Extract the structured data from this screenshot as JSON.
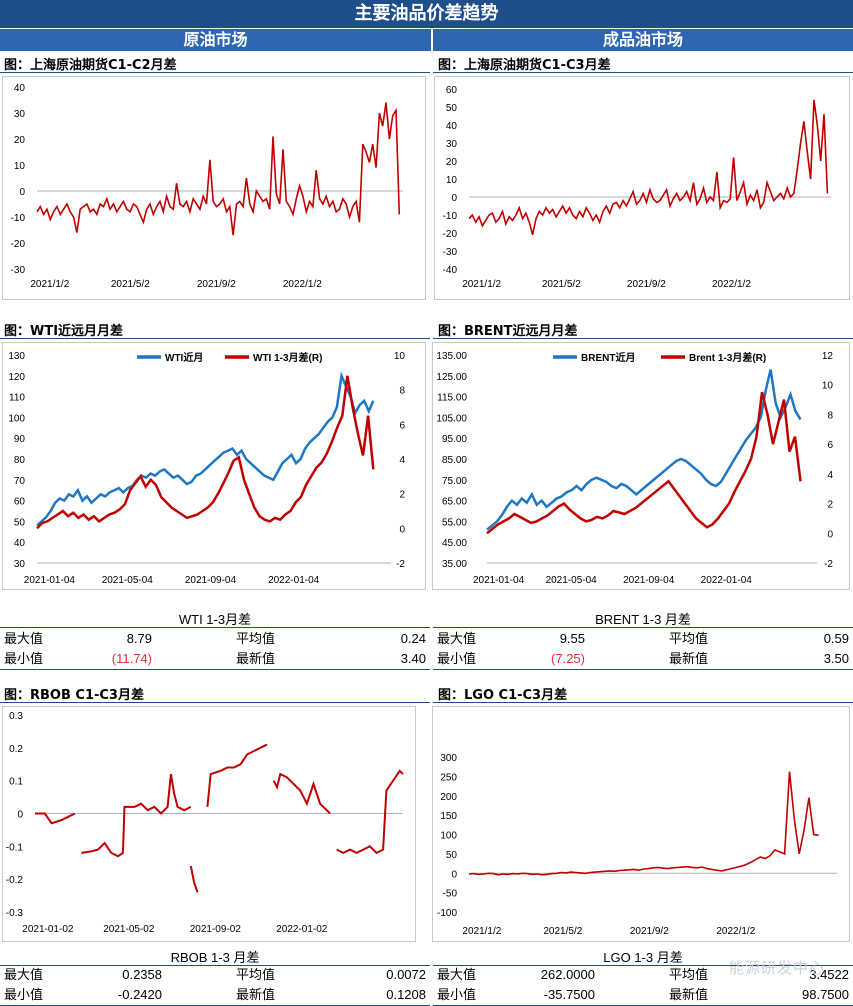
{
  "header": {
    "title": "主要油品价差趋势",
    "left_section": "原油市场",
    "right_section": "成品油市场"
  },
  "colors": {
    "header_bg": "#1f4e8c",
    "section_bg": "#2e67b1",
    "red_series": "#c00000",
    "blue_series": "#1f77c4",
    "negative_text": "#e03030"
  },
  "chart_data": [
    {
      "id": "sh_c1c2",
      "type": "line",
      "title": "图：上海原油期货C1-C2月差",
      "yticks": [
        -30,
        -20,
        -10,
        0,
        10,
        20,
        30,
        40
      ],
      "ylim": [
        -30,
        40
      ],
      "xticks": [
        "2021/1/2",
        "2021/5/2",
        "2021/9/2",
        "2022/1/2"
      ],
      "x_range": [
        "2021-01-02",
        "2022-05-15"
      ],
      "series": [
        {
          "color": "#c00000",
          "values": [
            -8,
            -6,
            -9,
            -7,
            -11,
            -8,
            -6,
            -9,
            -7,
            -5,
            -8,
            -10,
            -16,
            -7,
            -6,
            -5,
            -8,
            -7,
            -9,
            -5,
            -6,
            -3,
            -7,
            -5,
            -8,
            -6,
            -4,
            -7,
            -8,
            -5,
            -6,
            -9,
            -12,
            -7,
            -5,
            -9,
            -6,
            -4,
            -8,
            -2,
            -6,
            -7,
            3,
            -5,
            -6,
            -4,
            -8,
            -3,
            -5,
            -7,
            -2,
            -5,
            12,
            -4,
            -6,
            -5,
            -3,
            -8,
            -6,
            -17,
            -5,
            -4,
            -6,
            5,
            -5,
            -8,
            0,
            -2,
            -4,
            -3,
            -7,
            21,
            -1,
            -5,
            16,
            -4,
            -6,
            -9,
            -3,
            2,
            -2,
            -8,
            -4,
            -6,
            8,
            -3,
            -5,
            -2,
            -6,
            -4,
            -8,
            -7,
            -3,
            -5,
            -10,
            -6,
            -4,
            -12,
            18,
            15,
            11,
            18,
            9,
            30,
            25,
            34,
            20,
            29,
            31,
            -9
          ]
        }
      ]
    },
    {
      "id": "sh_c1c3",
      "type": "line",
      "title": "图：上海原油期货C1-C3月差",
      "yticks": [
        -40,
        -30,
        -20,
        -10,
        0,
        10,
        20,
        30,
        40,
        50,
        60
      ],
      "ylim": [
        -40,
        60
      ],
      "xticks": [
        "2021/1/2",
        "2021/5/2",
        "2021/9/2",
        "2022/1/2"
      ],
      "x_range": [
        "2021-01-02",
        "2022-05-15"
      ],
      "series": [
        {
          "color": "#c00000",
          "values": [
            -12,
            -10,
            -14,
            -11,
            -16,
            -13,
            -10,
            -9,
            -14,
            -12,
            -8,
            -15,
            -11,
            -13,
            -10,
            -6,
            -12,
            -9,
            -14,
            -21,
            -12,
            -8,
            -10,
            -6,
            -9,
            -7,
            -11,
            -8,
            -5,
            -9,
            -6,
            -10,
            -12,
            -8,
            -11,
            -6,
            -9,
            -13,
            -10,
            -14,
            -8,
            -5,
            -9,
            -4,
            -3,
            -6,
            -2,
            -5,
            -1,
            3,
            -4,
            -2,
            2,
            -3,
            4,
            -1,
            -3,
            -2,
            1,
            4,
            -5,
            -1,
            2,
            -2,
            0,
            3,
            -2,
            8,
            -4,
            -1,
            5,
            -3,
            0,
            -2,
            14,
            -6,
            -2,
            -3,
            -1,
            22,
            -2,
            3,
            8,
            -4,
            1,
            -2,
            4,
            -6,
            -3,
            8,
            3,
            -2,
            0,
            2,
            -1,
            5,
            0,
            2,
            15,
            30,
            42,
            25,
            10,
            54,
            40,
            20,
            46,
            2
          ]
        }
      ]
    },
    {
      "id": "wti",
      "type": "line",
      "title": "图：WTI近远月月差",
      "yticks": [
        30,
        40,
        50,
        60,
        70,
        80,
        90,
        100,
        110,
        120,
        130
      ],
      "ylim": [
        30,
        130
      ],
      "y2ticks": [
        -2,
        0,
        2,
        4,
        6,
        8,
        10
      ],
      "y2lim": [
        -2,
        10
      ],
      "xticks": [
        "2021-01-04",
        "2021-05-04",
        "2021-09-04",
        "2022-01-04"
      ],
      "x_range": [
        "2021-01-04",
        "2022-05-15"
      ],
      "legend": [
        "WTI近月",
        "WTI 1-3月差(R)"
      ],
      "series": [
        {
          "name": "WTI近月",
          "axis": "left",
          "color": "#1f77c4",
          "values": [
            48,
            50,
            52,
            55,
            59,
            61,
            60,
            63,
            62,
            65,
            60,
            62,
            59,
            61,
            63,
            62,
            64,
            65,
            66,
            64,
            66,
            67,
            70,
            72,
            71,
            73,
            72,
            74,
            75,
            73,
            71,
            72,
            70,
            68,
            69,
            72,
            73,
            75,
            77,
            79,
            81,
            83,
            84,
            85,
            82,
            84,
            80,
            78,
            76,
            74,
            72,
            71,
            70,
            74,
            78,
            80,
            82,
            78,
            80,
            85,
            88,
            90,
            92,
            95,
            98,
            100,
            105,
            120,
            115,
            110,
            102,
            106,
            108,
            103,
            108
          ]
        },
        {
          "name": "WTI 1-3月差(R)",
          "axis": "right",
          "color": "#c00000",
          "values": [
            0,
            0.3,
            0.4,
            0.6,
            0.8,
            1,
            0.7,
            0.9,
            0.6,
            0.8,
            0.5,
            0.7,
            0.4,
            0.6,
            0.8,
            0.9,
            1.1,
            1.4,
            2.2,
            2.6,
            3,
            2.4,
            2.8,
            2.5,
            1.8,
            1.5,
            1.2,
            1.0,
            0.8,
            0.6,
            0.7,
            0.8,
            1.0,
            1.2,
            1.5,
            2.0,
            2.6,
            3.2,
            3.9,
            4.1,
            2.8,
            2.0,
            1.2,
            0.7,
            0.5,
            0.4,
            0.6,
            0.5,
            0.8,
            1.0,
            1.5,
            1.8,
            2.5,
            3.0,
            3.5,
            3.8,
            4.3,
            5.0,
            5.8,
            6.5,
            8.8,
            7.0,
            5.5,
            4.2,
            6.5,
            3.4
          ]
        }
      ]
    },
    {
      "id": "brent",
      "type": "line",
      "title": "图：BRENT近远月月差",
      "yticks": [
        35,
        45,
        55,
        65,
        75,
        85,
        95,
        105,
        115,
        125,
        135
      ],
      "ylim": [
        35,
        135
      ],
      "ytick_labels": [
        "35.00",
        "45.00",
        "55.00",
        "65.00",
        "75.00",
        "85.00",
        "95.00",
        "105.00",
        "115.00",
        "125.00",
        "135.00"
      ],
      "y2ticks": [
        -2,
        0,
        2,
        4,
        6,
        8,
        10,
        12
      ],
      "y2lim": [
        -2,
        12
      ],
      "xticks": [
        "2021-01-04",
        "2021-05-04",
        "2021-09-04",
        "2022-01-04"
      ],
      "x_range": [
        "2021-01-04",
        "2022-05-15"
      ],
      "legend": [
        "BRENT近月",
        "Brent 1-3月差(R)"
      ],
      "series": [
        {
          "name": "BRENT近月",
          "axis": "left",
          "color": "#1f77c4",
          "values": [
            51,
            53,
            55,
            58,
            62,
            65,
            63,
            66,
            64,
            68,
            63,
            65,
            62,
            64,
            66,
            67,
            69,
            70,
            72,
            70,
            73,
            75,
            76,
            75,
            74,
            72,
            71,
            73,
            72,
            70,
            68,
            70,
            72,
            74,
            76,
            78,
            80,
            82,
            84,
            85,
            84,
            82,
            80,
            78,
            75,
            73,
            72,
            74,
            78,
            82,
            86,
            90,
            94,
            97,
            100,
            105,
            118,
            128,
            112,
            105,
            110,
            116,
            108,
            104
          ]
        },
        {
          "name": "Brent 1-3月差(R)",
          "axis": "right",
          "color": "#c00000",
          "values": [
            0,
            0.3,
            0.6,
            0.8,
            1.0,
            1.3,
            1.1,
            0.9,
            0.7,
            0.8,
            1.0,
            1.2,
            1.5,
            1.8,
            2.0,
            1.6,
            1.3,
            1.0,
            0.8,
            0.9,
            1.1,
            1.0,
            1.2,
            1.5,
            1.4,
            1.3,
            1.5,
            1.7,
            2.0,
            2.3,
            2.6,
            2.9,
            3.2,
            3.5,
            3.0,
            2.5,
            2.0,
            1.5,
            1.0,
            0.7,
            0.4,
            0.6,
            1.0,
            1.5,
            2.0,
            2.8,
            3.5,
            4.2,
            5.0,
            6.5,
            9.5,
            8.0,
            6.0,
            7.5,
            9.0,
            5.5,
            6.5,
            3.5
          ]
        }
      ]
    },
    {
      "id": "rbob",
      "type": "line",
      "title": "图：RBOB C1-C3月差",
      "yticks": [
        -0.3,
        -0.2,
        -0.1,
        0,
        0.1,
        0.2,
        0.3
      ],
      "ylim": [
        -0.3,
        0.3
      ],
      "xticks": [
        "2021-01-02",
        "2021-05-02",
        "2021-09-02",
        "2022-01-02"
      ],
      "x_range": [
        "2021-01-02",
        "2022-05-15"
      ],
      "series": [
        {
          "color": "#c00000",
          "segments": [
            [
              [
                0.0,
                0.0
              ],
              [
                0.03,
                0.0
              ],
              [
                0.05,
                -0.03
              ],
              [
                0.08,
                -0.02
              ],
              [
                0.1,
                -0.01
              ],
              [
                0.12,
                0.0
              ]
            ],
            [
              [
                0.14,
                -0.12
              ],
              [
                0.17,
                -0.115
              ],
              [
                0.19,
                -0.11
              ],
              [
                0.21,
                -0.09
              ],
              [
                0.23,
                -0.12
              ],
              [
                0.25,
                -0.13
              ],
              [
                0.265,
                -0.12
              ],
              [
                0.27,
                0.02
              ],
              [
                0.3,
                0.02
              ],
              [
                0.32,
                0.03
              ],
              [
                0.34,
                0.01
              ],
              [
                0.36,
                0.02
              ],
              [
                0.38,
                0.0
              ],
              [
                0.4,
                0.02
              ],
              [
                0.41,
                0.12
              ],
              [
                0.42,
                0.06
              ],
              [
                0.43,
                0.02
              ],
              [
                0.45,
                0.01
              ],
              [
                0.47,
                0.02
              ]
            ],
            [
              [
                0.47,
                -0.16
              ],
              [
                0.48,
                -0.21
              ],
              [
                0.49,
                -0.24
              ]
            ],
            [
              [
                0.52,
                0.02
              ],
              [
                0.53,
                0.12
              ],
              [
                0.56,
                0.13
              ],
              [
                0.58,
                0.14
              ],
              [
                0.6,
                0.14
              ],
              [
                0.62,
                0.15
              ],
              [
                0.64,
                0.18
              ],
              [
                0.66,
                0.19
              ],
              [
                0.68,
                0.2
              ],
              [
                0.7,
                0.21
              ]
            ],
            [
              [
                0.72,
                0.1
              ],
              [
                0.73,
                0.08
              ],
              [
                0.74,
                0.12
              ],
              [
                0.76,
                0.11
              ],
              [
                0.78,
                0.09
              ],
              [
                0.8,
                0.07
              ],
              [
                0.82,
                0.03
              ],
              [
                0.84,
                0.09
              ],
              [
                0.86,
                0.03
              ],
              [
                0.88,
                0.01
              ],
              [
                0.89,
                0.0
              ]
            ],
            [
              [
                0.91,
                -0.11
              ],
              [
                0.93,
                -0.12
              ],
              [
                0.95,
                -0.11
              ],
              [
                0.97,
                -0.12
              ],
              [
                0.99,
                -0.11
              ],
              [
                1.01,
                -0.1
              ],
              [
                1.03,
                -0.12
              ],
              [
                1.05,
                -0.11
              ],
              [
                1.06,
                0.07
              ],
              [
                1.08,
                0.1
              ],
              [
                1.1,
                0.13
              ],
              [
                1.11,
                0.12
              ]
            ]
          ]
        }
      ]
    },
    {
      "id": "lgo",
      "type": "line",
      "title": "图：LGO C1-C3月差",
      "yticks": [
        -100,
        -50,
        0,
        50,
        100,
        150,
        200,
        250,
        300
      ],
      "ylim": [
        -100,
        300
      ],
      "xticks": [
        "2021/1/2",
        "2021/5/2",
        "2021/9/2",
        "2022/1/2"
      ],
      "x_range": [
        "2021-01-02",
        "2022-05-15"
      ],
      "series": [
        {
          "color": "#c00000",
          "values": [
            -2,
            -1,
            -3,
            -2,
            0,
            -1,
            -4,
            -2,
            -3,
            -1,
            -2,
            0,
            -1,
            -3,
            -2,
            -4,
            -3,
            -1,
            0,
            2,
            1,
            3,
            2,
            1,
            0,
            2,
            3,
            4,
            5,
            6,
            5,
            7,
            8,
            9,
            10,
            8,
            11,
            12,
            14,
            15,
            13,
            12,
            14,
            15,
            16,
            17,
            15,
            14,
            16,
            12,
            10,
            8,
            6,
            9,
            12,
            15,
            18,
            22,
            28,
            35,
            42,
            38,
            45,
            60,
            55,
            50,
            262,
            140,
            50,
            110,
            195,
            100,
            98
          ]
        }
      ]
    }
  ],
  "stats": {
    "wti": {
      "title": "WTI 1-3月差",
      "max_label": "最大值",
      "max": "8.79",
      "avg_label": "平均值",
      "avg": "0.24",
      "min_label": "最小值",
      "min": "(11.74)",
      "latest_label": "最新值",
      "latest": "3.40"
    },
    "brent": {
      "title": "BRENT 1-3 月差",
      "max_label": "最大值",
      "max": "9.55",
      "avg_label": "平均值",
      "avg": "0.59",
      "min_label": "最小值",
      "min": "(7.25)",
      "latest_label": "最新值",
      "latest": "3.50"
    },
    "rbob": {
      "title": "RBOB 1-3 月差",
      "max_label": "最大值",
      "max": "0.2358",
      "avg_label": "平均值",
      "avg": "0.0072",
      "min_label": "最小值",
      "min": "-0.2420",
      "latest_label": "最新值",
      "latest": "0.1208"
    },
    "lgo": {
      "title": "LGO 1-3 月差",
      "max_label": "最大值",
      "max": "262.0000",
      "avg_label": "平均值",
      "avg": "3.4522",
      "min_label": "最小值",
      "min": "-35.7500",
      "latest_label": "最新值",
      "latest": "98.7500"
    }
  },
  "watermark": "能源研发中心"
}
